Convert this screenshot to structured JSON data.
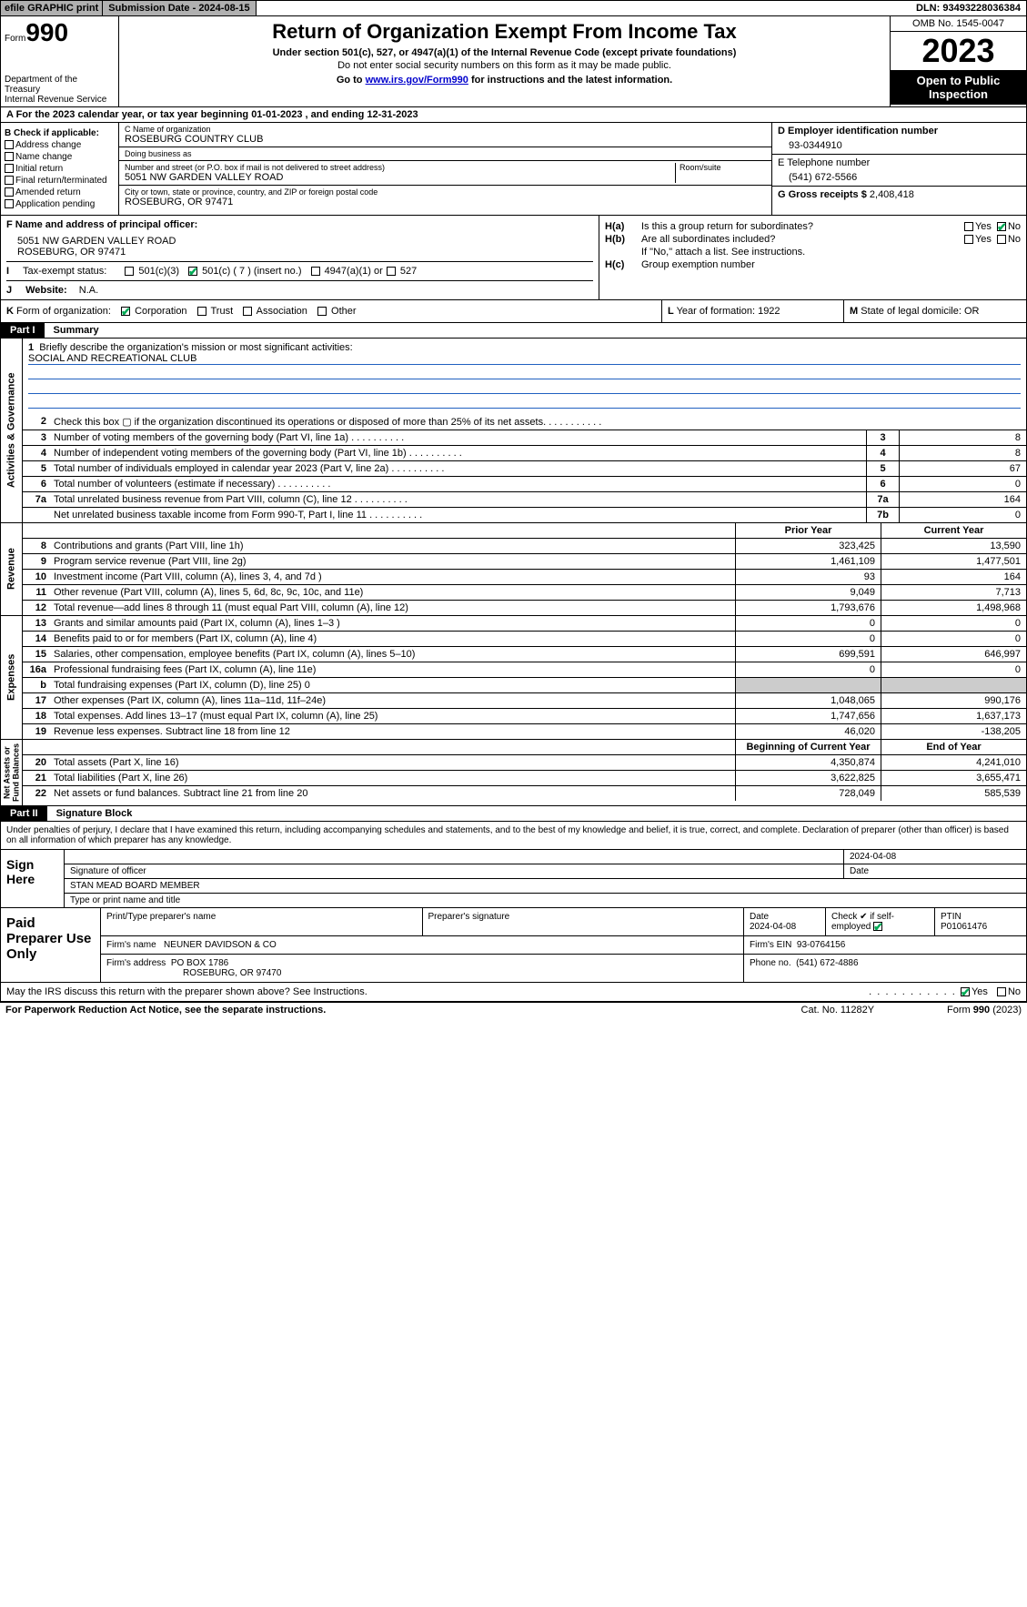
{
  "topbar": {
    "efile": "efile GRAPHIC print",
    "sub": "Submission Date - 2024-08-15",
    "dln": "DLN: 93493228036384"
  },
  "header": {
    "form_word": "Form",
    "form_num": "990",
    "title": "Return of Organization Exempt From Income Tax",
    "sub1": "Under section 501(c), 527, or 4947(a)(1) of the Internal Revenue Code (except private foundations)",
    "sub2": "Do not enter social security numbers on this form as it may be made public.",
    "sub3_a": "Go to ",
    "sub3_link": "www.irs.gov/Form990",
    "sub3_b": " for instructions and the latest information.",
    "dept": "Department of the Treasury\nInternal Revenue Service",
    "omb": "OMB No. 1545-0047",
    "year": "2023",
    "open": "Open to Public Inspection"
  },
  "line_a": "A For the 2023 calendar year, or tax year beginning 01-01-2023    , and ending 12-31-2023",
  "col_b": {
    "title": "B Check if applicable:",
    "items": [
      "Address change",
      "Name change",
      "Initial return",
      "Final return/terminated",
      "Amended return",
      "Application pending"
    ]
  },
  "col_c": {
    "name_lbl": "C Name of organization",
    "name": "ROSEBURG COUNTRY CLUB",
    "dba_lbl": "Doing business as",
    "dba": "",
    "addr_lbl": "Number and street (or P.O. box if mail is not delivered to street address)",
    "addr": "5051 NW GARDEN VALLEY ROAD",
    "room_lbl": "Room/suite",
    "city_lbl": "City or town, state or province, country, and ZIP or foreign postal code",
    "city": "ROSEBURG, OR  97471"
  },
  "col_de": {
    "d_lbl": "D Employer identification number",
    "d_val": "93-0344910",
    "e_lbl": "E Telephone number",
    "e_val": "(541) 672-5566",
    "g_lbl": "G Gross receipts $",
    "g_val": "2,408,418"
  },
  "section_f": {
    "lbl": "F  Name and address of principal officer:",
    "line1": "5051 NW GARDEN VALLEY ROAD",
    "line2": "ROSEBURG, OR  97471"
  },
  "section_h": {
    "ha": "H(a)",
    "ha_txt": "Is this a group return for subordinates?",
    "hb": "H(b)",
    "hb_txt": "Are all subordinates included?",
    "hb_note": "If \"No,\" attach a list. See instructions.",
    "hc": "H(c)",
    "hc_txt": "Group exemption number",
    "yes": "Yes",
    "no": "No"
  },
  "row_i": {
    "lbl": "I",
    "txt": "Tax-exempt status:",
    "o1": "501(c)(3)",
    "o2": "501(c) ( 7 ) (insert no.)",
    "o3": "4947(a)(1) or",
    "o4": "527"
  },
  "row_j": {
    "lbl": "J",
    "txt": "Website:",
    "val": "N.A."
  },
  "row_k": {
    "lbl": "K",
    "txt": "Form of organization:",
    "o1": "Corporation",
    "o2": "Trust",
    "o3": "Association",
    "o4": "Other"
  },
  "row_l": {
    "lbl": "L",
    "txt": "Year of formation: 1922"
  },
  "row_m": {
    "lbl": "M",
    "txt": "State of legal domicile: OR"
  },
  "part1": {
    "num": "Part I",
    "title": "Summary"
  },
  "mission": {
    "n": "1",
    "lbl": "Briefly describe the organization's mission or most significant activities:",
    "val": "SOCIAL AND RECREATIONAL CLUB"
  },
  "gov_rows": [
    {
      "n": "2",
      "t": "Check this box ▢ if the organization discontinued its operations or disposed of more than 25% of its net assets.",
      "box": "",
      "v": ""
    },
    {
      "n": "3",
      "t": "Number of voting members of the governing body (Part VI, line 1a)",
      "box": "3",
      "v": "8"
    },
    {
      "n": "4",
      "t": "Number of independent voting members of the governing body (Part VI, line 1b)",
      "box": "4",
      "v": "8"
    },
    {
      "n": "5",
      "t": "Total number of individuals employed in calendar year 2023 (Part V, line 2a)",
      "box": "5",
      "v": "67"
    },
    {
      "n": "6",
      "t": "Total number of volunteers (estimate if necessary)",
      "box": "6",
      "v": "0"
    },
    {
      "n": "7a",
      "t": "Total unrelated business revenue from Part VIII, column (C), line 12",
      "box": "7a",
      "v": "164"
    },
    {
      "n": "",
      "t": "Net unrelated business taxable income from Form 990-T, Part I, line 11",
      "box": "7b",
      "v": "0"
    }
  ],
  "hdr_py": "Prior Year",
  "hdr_cy": "Current Year",
  "rev_rows": [
    {
      "n": "8",
      "t": "Contributions and grants (Part VIII, line 1h)",
      "py": "323,425",
      "cy": "13,590"
    },
    {
      "n": "9",
      "t": "Program service revenue (Part VIII, line 2g)",
      "py": "1,461,109",
      "cy": "1,477,501"
    },
    {
      "n": "10",
      "t": "Investment income (Part VIII, column (A), lines 3, 4, and 7d )",
      "py": "93",
      "cy": "164"
    },
    {
      "n": "11",
      "t": "Other revenue (Part VIII, column (A), lines 5, 6d, 8c, 9c, 10c, and 11e)",
      "py": "9,049",
      "cy": "7,713"
    },
    {
      "n": "12",
      "t": "Total revenue—add lines 8 through 11 (must equal Part VIII, column (A), line 12)",
      "py": "1,793,676",
      "cy": "1,498,968"
    }
  ],
  "exp_rows": [
    {
      "n": "13",
      "t": "Grants and similar amounts paid (Part IX, column (A), lines 1–3 )",
      "py": "0",
      "cy": "0"
    },
    {
      "n": "14",
      "t": "Benefits paid to or for members (Part IX, column (A), line 4)",
      "py": "0",
      "cy": "0"
    },
    {
      "n": "15",
      "t": "Salaries, other compensation, employee benefits (Part IX, column (A), lines 5–10)",
      "py": "699,591",
      "cy": "646,997"
    },
    {
      "n": "16a",
      "t": "Professional fundraising fees (Part IX, column (A), line 11e)",
      "py": "0",
      "cy": "0"
    },
    {
      "n": "b",
      "t": "Total fundraising expenses (Part IX, column (D), line 25) 0",
      "py": "",
      "cy": "",
      "grey": true
    },
    {
      "n": "17",
      "t": "Other expenses (Part IX, column (A), lines 11a–11d, 11f–24e)",
      "py": "1,048,065",
      "cy": "990,176"
    },
    {
      "n": "18",
      "t": "Total expenses. Add lines 13–17 (must equal Part IX, column (A), line 25)",
      "py": "1,747,656",
      "cy": "1,637,173"
    },
    {
      "n": "19",
      "t": "Revenue less expenses. Subtract line 18 from line 12",
      "py": "46,020",
      "cy": "-138,205"
    }
  ],
  "na_hdr_py": "Beginning of Current Year",
  "na_hdr_cy": "End of Year",
  "na_rows": [
    {
      "n": "20",
      "t": "Total assets (Part X, line 16)",
      "py": "4,350,874",
      "cy": "4,241,010"
    },
    {
      "n": "21",
      "t": "Total liabilities (Part X, line 26)",
      "py": "3,622,825",
      "cy": "3,655,471"
    },
    {
      "n": "22",
      "t": "Net assets or fund balances. Subtract line 21 from line 20",
      "py": "728,049",
      "cy": "585,539"
    }
  ],
  "vtabs": {
    "gov": "Activities & Governance",
    "rev": "Revenue",
    "exp": "Expenses",
    "na": "Net Assets or\nFund Balances"
  },
  "part2": {
    "num": "Part II",
    "title": "Signature Block"
  },
  "sig_text": "Under penalties of perjury, I declare that I have examined this return, including accompanying schedules and statements, and to the best of my knowledge and belief, it is true, correct, and complete. Declaration of preparer (other than officer) is based on all information of which preparer has any knowledge.",
  "sign": {
    "left": "Sign Here",
    "date": "2024-04-08",
    "sig_lbl": "Signature of officer",
    "date_lbl": "Date",
    "name": "STAN MEAD  BOARD MEMBER",
    "name_lbl": "Type or print name and title"
  },
  "paid": {
    "left": "Paid Preparer Use Only",
    "h1": "Print/Type preparer's name",
    "h2": "Preparer's signature",
    "h3": "Date",
    "h4": "Check ✔ if self-employed",
    "h5": "PTIN",
    "date": "2024-04-08",
    "ptin": "P01061476",
    "firm_lbl": "Firm's name",
    "firm": "NEUNER DAVIDSON & CO",
    "ein_lbl": "Firm's EIN",
    "ein": "93-0764156",
    "addr_lbl": "Firm's address",
    "addr1": "PO BOX 1786",
    "addr2": "ROSEBURG, OR  97470",
    "phone_lbl": "Phone no.",
    "phone": "(541) 672-4886"
  },
  "discuss": {
    "txt": "May the IRS discuss this return with the preparer shown above? See Instructions.",
    "yes": "Yes",
    "no": "No"
  },
  "footer": {
    "l": "For Paperwork Reduction Act Notice, see the separate instructions.",
    "m": "Cat. No. 11282Y",
    "r": "Form 990 (2023)"
  }
}
